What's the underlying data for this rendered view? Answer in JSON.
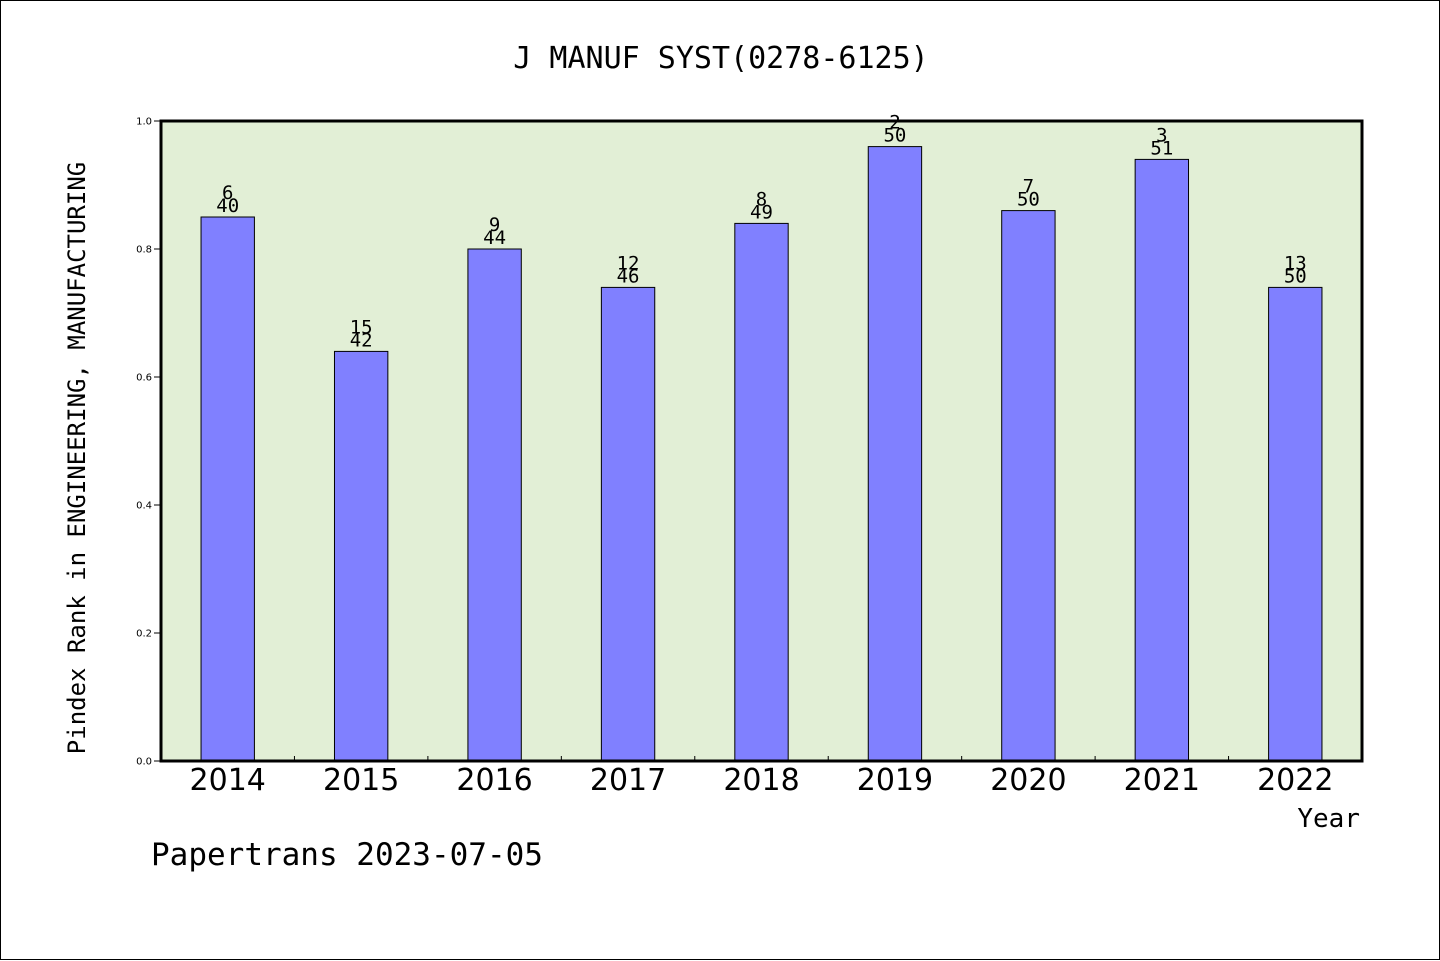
{
  "chart_data": {
    "type": "bar",
    "title": "J MANUF SYST(0278-6125)",
    "xlabel": "Year",
    "ylabel": "Pindex Rank in ENGINEERING, MANUFACTURING",
    "categories": [
      "2014",
      "2015",
      "2016",
      "2017",
      "2018",
      "2019",
      "2020",
      "2021",
      "2022"
    ],
    "values": [
      0.85,
      0.64,
      0.8,
      0.74,
      0.84,
      0.96,
      0.86,
      0.94,
      0.74
    ],
    "rank": [
      "6",
      "15",
      "9",
      "12",
      "8",
      "2",
      "7",
      "3",
      "13"
    ],
    "total": [
      "40",
      "42",
      "44",
      "46",
      "49",
      "50",
      "50",
      "51",
      "50"
    ],
    "ylim": [
      0,
      1.0
    ],
    "yticks": [
      "0.0",
      "0.2",
      "0.4",
      "0.6",
      "0.8",
      "1.0"
    ],
    "grid": false,
    "colors": {
      "bar": "#8080ff",
      "plot_background": "#e2efd6",
      "axis": "#000000"
    }
  },
  "footer": {
    "text": "Papertrans 2023-07-05"
  }
}
